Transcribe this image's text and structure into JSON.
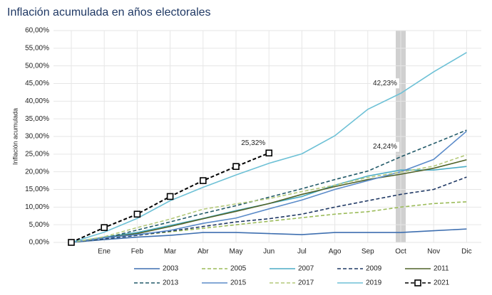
{
  "chart_data": {
    "type": "line",
    "title": "Inflación acumulada en años electorales",
    "y_label": "Inflación acumulada",
    "categories": [
      null,
      "Ene",
      "Feb",
      "Mar",
      "Abr",
      "May",
      "Jun",
      "Jul",
      "Ago",
      "Sep",
      "Oct",
      "Nov",
      "Dic"
    ],
    "highlight": "Oct",
    "ylim": [
      0,
      60
    ],
    "yticks": [
      {
        "value": 0,
        "label": "0,00%"
      },
      {
        "value": 5,
        "label": "5,00%"
      },
      {
        "value": 10,
        "label": "10,00%"
      },
      {
        "value": 15,
        "label": "15,00%"
      },
      {
        "value": 20,
        "label": "20,00%"
      },
      {
        "value": 25,
        "label": "25,00%"
      },
      {
        "value": 30,
        "label": "30,00%"
      },
      {
        "value": 35,
        "label": "35,00%"
      },
      {
        "value": 40,
        "label": "40,00%"
      },
      {
        "value": 45,
        "label": "45,00%"
      },
      {
        "value": 50,
        "label": "50,00%"
      },
      {
        "value": 55,
        "label": "55,00%"
      },
      {
        "value": 60,
        "label": "60,00%"
      }
    ],
    "grid": true,
    "series": [
      {
        "name": "2003",
        "color": "#3e6fb0",
        "dash": false,
        "values": [
          0,
          0.8,
          1.5,
          2,
          2.8,
          2.8,
          2.5,
          2.2,
          2.8,
          2.8,
          2.8,
          3.3,
          3.8
        ]
      },
      {
        "name": "2005",
        "color": "#9bbb59",
        "dash": true,
        "values": [
          0,
          1,
          2,
          3,
          4,
          5,
          6,
          7,
          8,
          8.7,
          10,
          11,
          11.5
        ]
      },
      {
        "name": "2007",
        "color": "#4bacc6",
        "dash": false,
        "values": [
          0,
          1.5,
          2.8,
          4.8,
          6.8,
          9,
          11,
          13,
          16.2,
          18.8,
          20.5,
          20.5,
          21.5
        ]
      },
      {
        "name": "2009",
        "color": "#1f3864",
        "dash": true,
        "values": [
          0,
          1,
          2,
          3.2,
          4.5,
          5.8,
          6.7,
          8,
          10,
          11.8,
          13.6,
          15,
          18.5
        ]
      },
      {
        "name": "2011",
        "color": "#4f6228",
        "dash": false,
        "values": [
          0,
          1.3,
          2.5,
          4.5,
          6.7,
          8.8,
          11,
          13.6,
          15.8,
          17.8,
          19.3,
          21,
          23.4
        ]
      },
      {
        "name": "2013",
        "color": "#215968",
        "dash": true,
        "values": [
          0,
          1.2,
          3.5,
          5.8,
          8.2,
          10.4,
          12.8,
          15.2,
          17.8,
          20.2,
          24.24,
          28,
          31.8
        ],
        "value_labels": [
          null,
          null,
          null,
          null,
          null,
          null,
          null,
          null,
          null,
          null,
          "24,24%",
          null,
          null
        ]
      },
      {
        "name": "2015",
        "color": "#5b8bc9",
        "dash": false,
        "values": [
          0,
          1.3,
          2.2,
          3.4,
          5.4,
          6.9,
          9.5,
          12,
          15,
          17.5,
          20,
          23.5,
          31.5
        ]
      },
      {
        "name": "2017",
        "color": "#b4c97a",
        "dash": true,
        "values": [
          0,
          1.6,
          4.2,
          6.6,
          9.4,
          10.9,
          12.4,
          14.4,
          16.2,
          18.4,
          19.9,
          21.6,
          24.8
        ]
      },
      {
        "name": "2019",
        "color": "#6ec1d6",
        "dash": false,
        "values": [
          0,
          2.9,
          6.8,
          11.8,
          15.6,
          19.1,
          22.4,
          25.1,
          30.2,
          37.7,
          42.23,
          48.3,
          53.8
        ],
        "value_labels": [
          null,
          null,
          null,
          null,
          null,
          null,
          null,
          null,
          null,
          null,
          "42,23%",
          null,
          null
        ]
      },
      {
        "name": "2021",
        "color": "#000000",
        "dash": true,
        "marker": "square",
        "values": [
          0,
          4.2,
          8,
          13,
          17.5,
          21.5,
          25.32,
          null,
          null,
          null,
          null,
          null,
          null
        ],
        "value_labels": [
          null,
          null,
          null,
          null,
          null,
          null,
          "25,32%",
          null,
          null,
          null,
          null,
          null,
          null
        ]
      }
    ]
  }
}
